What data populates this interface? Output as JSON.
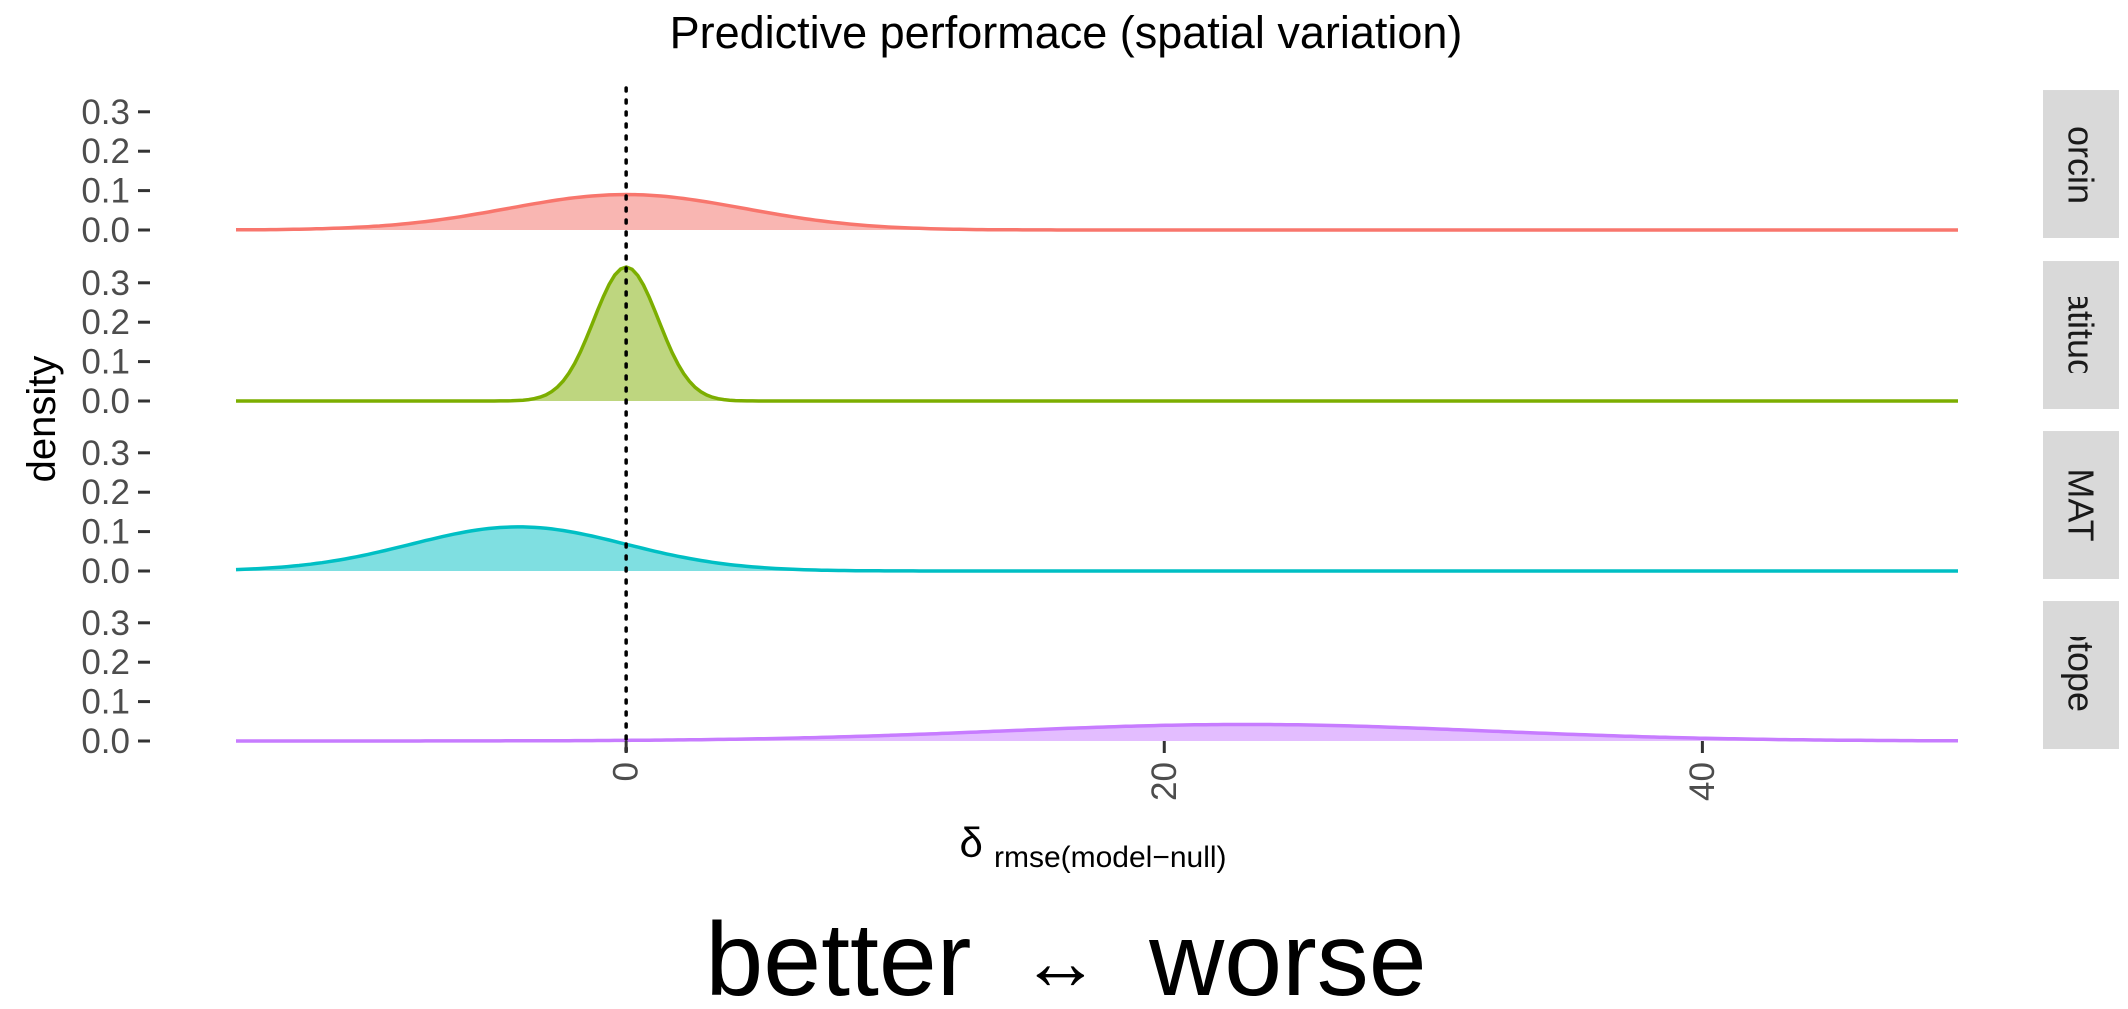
{
  "chart_data": {
    "type": "area",
    "title": "Predictive performace (spatial variation)",
    "xlabel_symbol": "δ",
    "xlabel_subscript": "rmse(model−null)",
    "ylabel": "density",
    "caption": {
      "left": "better",
      "arrow": "↔",
      "right": "worse"
    },
    "xlim": [
      -14.5,
      49.5
    ],
    "ylim": [
      0,
      0.35
    ],
    "x_ticks": [
      0,
      20,
      40
    ],
    "x_tick_labels": [
      "0",
      "20",
      "40"
    ],
    "y_ticks": [
      0,
      0.1,
      0.2,
      0.3
    ],
    "y_tick_labels": [
      "0.0",
      "0.1",
      "0.2",
      "0.3"
    ],
    "reference_line": {
      "x": 0,
      "style": "dotted",
      "color": "#000000"
    },
    "grid": false,
    "facets": [
      "Forcing",
      "Latitude",
      "MAT",
      "Photoperiod"
    ],
    "series": [
      {
        "facet": "Forcing",
        "mean": 0,
        "sd": 4.4,
        "peak": 0.09,
        "color": "#F8766D",
        "fill": "#F9B6B2"
      },
      {
        "facet": "Latitude",
        "mean": 0,
        "sd": 1.2,
        "peak": 0.34,
        "color": "#7CAE00",
        "fill": "#BED67F"
      },
      {
        "facet": "MAT",
        "mean": -4,
        "sd": 4.0,
        "peak": 0.112,
        "color": "#00BFC4",
        "fill": "#7FDFE1"
      },
      {
        "facet": "Photoperiod",
        "mean": 23,
        "sd": 9.0,
        "peak": 0.042,
        "color": "#C77CFF",
        "fill": "#E3BDFF"
      }
    ]
  }
}
